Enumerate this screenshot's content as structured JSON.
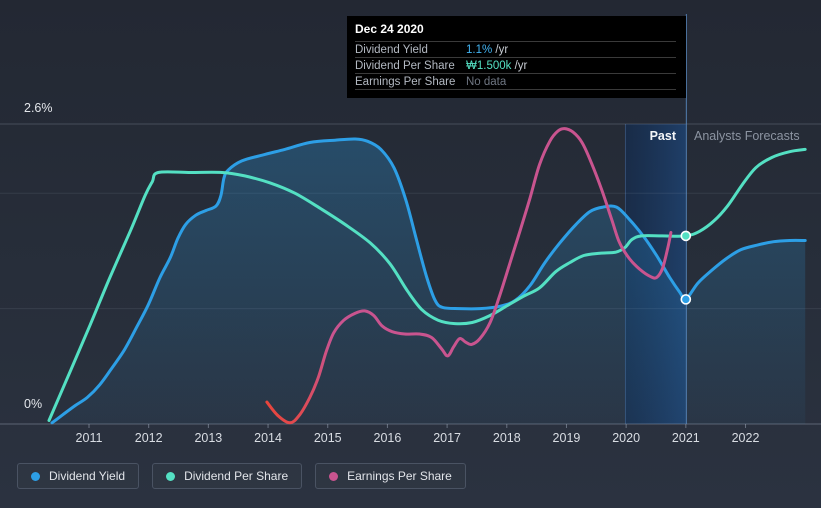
{
  "tooltip": {
    "date": "Dec 24 2020",
    "rows": [
      {
        "label": "Dividend Yield",
        "value": "1.1%",
        "suffix": " /yr",
        "value_color": "#41B2F0"
      },
      {
        "label": "Dividend Per Share",
        "value": "₩1.500k",
        "suffix": " /yr",
        "value_color": "#54E0C3"
      },
      {
        "label": "Earnings Per Share",
        "value": "No data",
        "suffix": "",
        "value_color": "#6F7682"
      }
    ]
  },
  "annotations": {
    "past": "Past",
    "forecast": "Analysts Forecasts"
  },
  "y_axis": {
    "top_label": "2.6%",
    "bottom_label": "0%"
  },
  "legend": {
    "items": [
      {
        "label": "Dividend Yield",
        "color": "#2D9FE6"
      },
      {
        "label": "Dividend Per Share",
        "color": "#54E0C3"
      },
      {
        "label": "Earnings Per Share",
        "color": "#C9548F"
      }
    ]
  },
  "chart_data": {
    "type": "line",
    "title": "Dividend yield history and analyst forecasts",
    "x_ticks": [
      2011,
      2012,
      2013,
      2014,
      2015,
      2016,
      2017,
      2018,
      2019,
      2020,
      2021,
      2022
    ],
    "xlim": [
      2010.2,
      2023.4
    ],
    "ylim": [
      0,
      2.6
    ],
    "y_gridlines": [
      0,
      1,
      2,
      2.6
    ],
    "today_x": 2021.0,
    "past_band": [
      2019.98,
      2021.0
    ],
    "legend_position": "bottom-left",
    "markers": [
      {
        "series": "Dividend Yield",
        "x": 2021.0,
        "y": 1.08,
        "display": "1.1% /yr"
      },
      {
        "series": "Dividend Per Share",
        "x": 2021.0,
        "y": 1.63,
        "display": "₩1.500k /yr"
      }
    ],
    "series": [
      {
        "name": "Dividend Yield",
        "color": "#2D9FE6",
        "area": true,
        "unit": "%",
        "points": [
          [
            2010.38,
            0.01
          ],
          [
            2010.56,
            0.08
          ],
          [
            2010.77,
            0.16
          ],
          [
            2010.97,
            0.23
          ],
          [
            2011.18,
            0.34
          ],
          [
            2011.39,
            0.49
          ],
          [
            2011.59,
            0.64
          ],
          [
            2011.79,
            0.83
          ],
          [
            2011.99,
            1.03
          ],
          [
            2012.19,
            1.27
          ],
          [
            2012.36,
            1.44
          ],
          [
            2012.49,
            1.61
          ],
          [
            2012.62,
            1.73
          ],
          [
            2012.79,
            1.81
          ],
          [
            2012.96,
            1.85
          ],
          [
            2013.13,
            1.89
          ],
          [
            2013.21,
            1.98
          ],
          [
            2013.26,
            2.13
          ],
          [
            2013.33,
            2.2
          ],
          [
            2013.56,
            2.28
          ],
          [
            2013.9,
            2.33
          ],
          [
            2014.28,
            2.38
          ],
          [
            2014.7,
            2.44
          ],
          [
            2015.12,
            2.46
          ],
          [
            2015.46,
            2.47
          ],
          [
            2015.67,
            2.45
          ],
          [
            2015.89,
            2.38
          ],
          [
            2016.11,
            2.22
          ],
          [
            2016.31,
            1.94
          ],
          [
            2016.49,
            1.59
          ],
          [
            2016.66,
            1.27
          ],
          [
            2016.8,
            1.07
          ],
          [
            2016.93,
            1.01
          ],
          [
            2017.21,
            1.0
          ],
          [
            2017.55,
            1.0
          ],
          [
            2017.88,
            1.02
          ],
          [
            2018.14,
            1.07
          ],
          [
            2018.39,
            1.2
          ],
          [
            2018.64,
            1.4
          ],
          [
            2018.89,
            1.57
          ],
          [
            2019.16,
            1.73
          ],
          [
            2019.39,
            1.84
          ],
          [
            2019.61,
            1.88
          ],
          [
            2019.84,
            1.88
          ],
          [
            2020.06,
            1.77
          ],
          [
            2020.3,
            1.62
          ],
          [
            2020.51,
            1.46
          ],
          [
            2020.73,
            1.27
          ],
          [
            2020.9,
            1.14
          ],
          [
            2021.0,
            1.08
          ],
          [
            2021.2,
            1.22
          ],
          [
            2021.43,
            1.33
          ],
          [
            2021.67,
            1.43
          ],
          [
            2021.92,
            1.51
          ],
          [
            2022.19,
            1.55
          ],
          [
            2022.47,
            1.58
          ],
          [
            2022.74,
            1.59
          ],
          [
            2023.0,
            1.59
          ]
        ]
      },
      {
        "name": "Dividend Per Share",
        "color": "#54E0C3",
        "area": false,
        "unit": "KRW (relative scale)",
        "points": [
          [
            2010.33,
            0.03
          ],
          [
            2010.68,
            0.45
          ],
          [
            2011.02,
            0.86
          ],
          [
            2011.35,
            1.27
          ],
          [
            2011.69,
            1.67
          ],
          [
            2011.94,
            1.98
          ],
          [
            2012.06,
            2.1
          ],
          [
            2012.16,
            2.18
          ],
          [
            2012.7,
            2.18
          ],
          [
            2013.23,
            2.18
          ],
          [
            2013.61,
            2.15
          ],
          [
            2014.03,
            2.09
          ],
          [
            2014.45,
            2.0
          ],
          [
            2014.87,
            1.87
          ],
          [
            2015.29,
            1.73
          ],
          [
            2015.71,
            1.57
          ],
          [
            2016.04,
            1.39
          ],
          [
            2016.34,
            1.15
          ],
          [
            2016.58,
            0.99
          ],
          [
            2016.85,
            0.9
          ],
          [
            2017.13,
            0.87
          ],
          [
            2017.42,
            0.88
          ],
          [
            2017.72,
            0.94
          ],
          [
            2018.02,
            1.03
          ],
          [
            2018.29,
            1.11
          ],
          [
            2018.55,
            1.18
          ],
          [
            2018.82,
            1.32
          ],
          [
            2019.06,
            1.4
          ],
          [
            2019.29,
            1.46
          ],
          [
            2019.56,
            1.48
          ],
          [
            2019.83,
            1.49
          ],
          [
            2019.98,
            1.53
          ],
          [
            2020.1,
            1.6
          ],
          [
            2020.26,
            1.63
          ],
          [
            2020.6,
            1.63
          ],
          [
            2021.0,
            1.63
          ],
          [
            2021.23,
            1.67
          ],
          [
            2021.47,
            1.76
          ],
          [
            2021.7,
            1.89
          ],
          [
            2021.94,
            2.07
          ],
          [
            2022.17,
            2.22
          ],
          [
            2022.44,
            2.31
          ],
          [
            2022.74,
            2.36
          ],
          [
            2023.0,
            2.38
          ]
        ]
      },
      {
        "name": "Earnings Per Share",
        "color": "#C9548F",
        "color_start": "#E8453C",
        "area": false,
        "unit": "KRW (relative scale)",
        "points": [
          [
            2013.98,
            0.19
          ],
          [
            2014.17,
            0.07
          ],
          [
            2014.37,
            0.01
          ],
          [
            2014.53,
            0.08
          ],
          [
            2014.7,
            0.23
          ],
          [
            2014.84,
            0.4
          ],
          [
            2014.97,
            0.62
          ],
          [
            2015.1,
            0.79
          ],
          [
            2015.27,
            0.9
          ],
          [
            2015.46,
            0.96
          ],
          [
            2015.62,
            0.98
          ],
          [
            2015.77,
            0.94
          ],
          [
            2015.91,
            0.85
          ],
          [
            2016.08,
            0.8
          ],
          [
            2016.29,
            0.78
          ],
          [
            2016.54,
            0.78
          ],
          [
            2016.74,
            0.75
          ],
          [
            2016.91,
            0.65
          ],
          [
            2017.01,
            0.59
          ],
          [
            2017.11,
            0.67
          ],
          [
            2017.21,
            0.74
          ],
          [
            2017.31,
            0.71
          ],
          [
            2017.41,
            0.69
          ],
          [
            2017.55,
            0.74
          ],
          [
            2017.72,
            0.88
          ],
          [
            2017.88,
            1.11
          ],
          [
            2018.05,
            1.39
          ],
          [
            2018.22,
            1.67
          ],
          [
            2018.39,
            1.96
          ],
          [
            2018.55,
            2.25
          ],
          [
            2018.72,
            2.45
          ],
          [
            2018.86,
            2.54
          ],
          [
            2018.97,
            2.56
          ],
          [
            2019.11,
            2.53
          ],
          [
            2019.26,
            2.44
          ],
          [
            2019.42,
            2.26
          ],
          [
            2019.59,
            2.03
          ],
          [
            2019.76,
            1.77
          ],
          [
            2019.89,
            1.57
          ],
          [
            2020.06,
            1.43
          ],
          [
            2020.23,
            1.34
          ],
          [
            2020.4,
            1.28
          ],
          [
            2020.51,
            1.27
          ],
          [
            2020.61,
            1.35
          ],
          [
            2020.7,
            1.53
          ],
          [
            2020.75,
            1.66
          ]
        ]
      }
    ]
  }
}
